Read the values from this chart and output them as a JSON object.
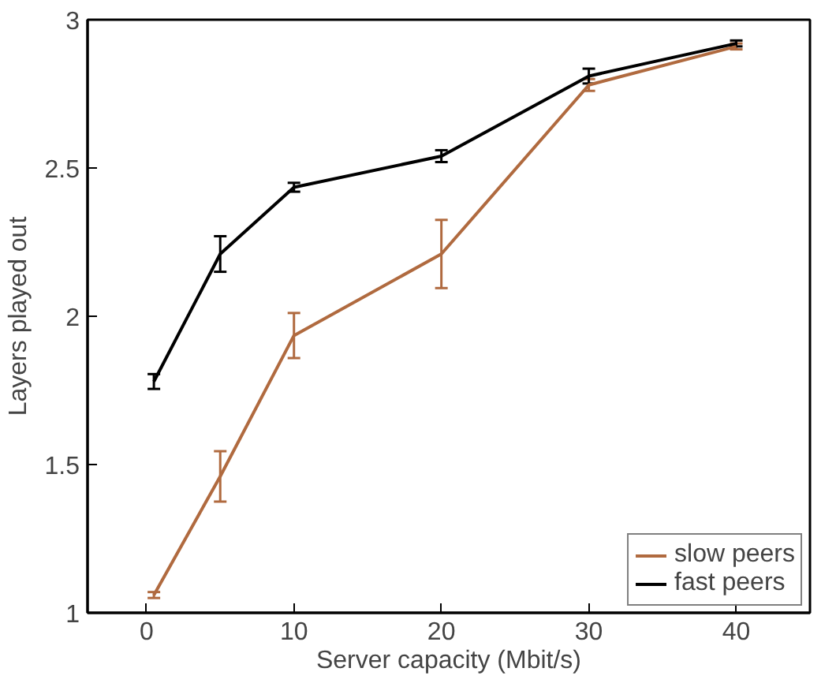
{
  "chart_data": {
    "type": "line",
    "xlabel": "Server capacity (Mbit/s)",
    "ylabel": "Layers played out",
    "x": [
      0.5,
      5,
      10,
      20,
      30,
      40
    ],
    "series": [
      {
        "name": "slow peers",
        "color": "#b06a3f",
        "values": [
          1.06,
          1.46,
          1.935,
          2.21,
          2.78,
          2.91
        ],
        "errors": [
          0.01,
          0.085,
          0.076,
          0.115,
          0.02,
          0.01
        ]
      },
      {
        "name": "fast peers",
        "color": "#000000",
        "values": [
          1.78,
          2.21,
          2.435,
          2.54,
          2.81,
          2.92
        ],
        "errors": [
          0.025,
          0.06,
          0.015,
          0.02,
          0.025,
          0.01
        ]
      }
    ],
    "xlim": [
      -4,
      45
    ],
    "xticks": [
      0,
      10,
      20,
      30,
      40
    ],
    "ylim": [
      1,
      3
    ],
    "yticks": [
      1,
      1.5,
      2,
      2.5,
      3
    ],
    "grid": false,
    "legend": "bottom right",
    "marker": "none",
    "line_style": "solid"
  }
}
